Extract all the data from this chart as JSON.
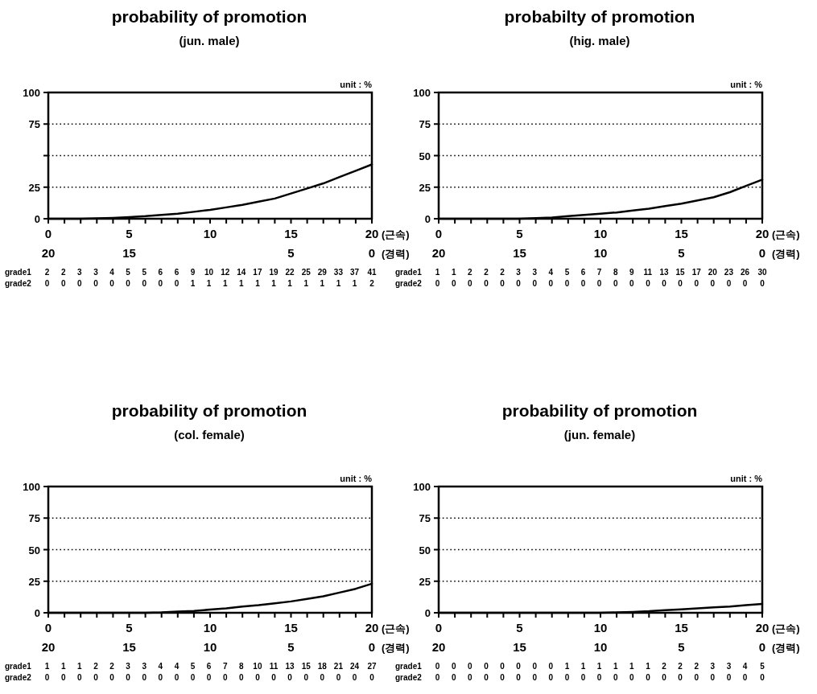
{
  "chart_data": [
    {
      "type": "line",
      "title": "probability of promotion",
      "subtitle": "(jun. male)",
      "xlabel": "(근속)",
      "x2label": "(경력)",
      "x": [
        0,
        1,
        2,
        3,
        4,
        5,
        6,
        7,
        8,
        9,
        10,
        11,
        12,
        13,
        14,
        15,
        16,
        17,
        18,
        19,
        20
      ],
      "xlim": [
        0,
        20
      ],
      "xticks": [
        0,
        {
          "value": 1,
          "label": null
        },
        {
          "value": 2,
          "label": null
        },
        {
          "value": 3,
          "label": null
        },
        {
          "value": 4,
          "label": null
        },
        5,
        {
          "value": 6,
          "label": null
        },
        {
          "value": 7,
          "label": null
        },
        {
          "value": 8,
          "label": null
        },
        {
          "value": 9,
          "label": null
        },
        10,
        {
          "value": 11,
          "label": null
        },
        {
          "value": 12,
          "label": null
        },
        {
          "value": 13,
          "label": null
        },
        {
          "value": 14,
          "label": null
        },
        15,
        {
          "value": 16,
          "label": null
        },
        {
          "value": 17,
          "label": null
        },
        {
          "value": 18,
          "label": null
        },
        {
          "value": 19,
          "label": null
        },
        20
      ],
      "x2lim": [
        20,
        0
      ],
      "x2ticks": [
        20,
        15,
        5,
        0
      ],
      "ylim": [
        0,
        100
      ],
      "yticks": [
        0,
        25,
        {
          "value": 50,
          "label": null
        },
        75,
        100
      ],
      "grid": "y",
      "line_style": "solid",
      "series": [
        {
          "color": "#000000",
          "values": [
            0,
            0,
            0,
            0.3,
            0.7,
            1.3,
            2,
            3,
            4,
            5.5,
            7,
            9,
            11,
            13.5,
            16,
            20,
            24,
            28,
            33,
            38,
            43
          ]
        }
      ],
      "annotations": [
        "unit : %",
        "grade1 2 2 3 3 4 5 5 6 6 9 10 12 14 17 19 22 25 29 33 37 41",
        "grade2 0 0 0 0 0 0 0 0 0 1 1 1 1 1 1 1 1 1 1 1 2"
      ]
    },
    {
      "type": "line",
      "title": "probabilty of promotion",
      "subtitle": "(hig. male)",
      "xlabel": "(근속)",
      "x2label": "(경력)",
      "x": [
        0,
        1,
        2,
        3,
        4,
        5,
        6,
        7,
        8,
        9,
        10,
        11,
        12,
        13,
        14,
        15,
        16,
        17,
        18,
        19,
        20
      ],
      "xlim": [
        0,
        20
      ],
      "xticks": [
        0,
        {
          "value": 1,
          "label": null
        },
        {
          "value": 2,
          "label": null
        },
        {
          "value": 3,
          "label": null
        },
        {
          "value": 4,
          "label": null
        },
        5,
        {
          "value": 6,
          "label": null
        },
        {
          "value": 7,
          "label": null
        },
        {
          "value": 8,
          "label": null
        },
        {
          "value": 9,
          "label": null
        },
        10,
        {
          "value": 11,
          "label": null
        },
        {
          "value": 12,
          "label": null
        },
        {
          "value": 13,
          "label": null
        },
        {
          "value": 14,
          "label": null
        },
        15,
        {
          "value": 16,
          "label": null
        },
        {
          "value": 17,
          "label": null
        },
        {
          "value": 18,
          "label": null
        },
        {
          "value": 19,
          "label": null
        },
        20
      ],
      "x2lim": [
        20,
        0
      ],
      "x2ticks": [
        20,
        15,
        10,
        5,
        0
      ],
      "ylim": [
        0,
        100
      ],
      "yticks": [
        0,
        25,
        50,
        75,
        100
      ],
      "grid": "y",
      "line_style": "solid",
      "series": [
        {
          "color": "#000000",
          "values": [
            0,
            0,
            0,
            0,
            0,
            0,
            0.5,
            1,
            2,
            3,
            4,
            5,
            6.5,
            8,
            10,
            12,
            14.5,
            17,
            21,
            26,
            31
          ]
        }
      ],
      "annotations": [
        "unit : %",
        "grade1 1 1 2 2 2 3 3 4 5 6 7 8 9 11 13 15 17 20 23 26 30",
        "grade2 0 0 0 0 0 0 0 0 0 0 0 0 0 0 0 0 0 0 0 0 0"
      ]
    },
    {
      "type": "line",
      "title": "probability of promotion",
      "subtitle": "(col. female)",
      "xlabel": "(근속)",
      "x2label": "(경력)",
      "x": [
        0,
        1,
        2,
        3,
        4,
        5,
        6,
        7,
        8,
        9,
        10,
        11,
        12,
        13,
        14,
        15,
        16,
        17,
        18,
        19,
        20
      ],
      "xlim": [
        0,
        20
      ],
      "xticks": [
        0,
        {
          "value": 1,
          "label": null
        },
        {
          "value": 2,
          "label": null
        },
        {
          "value": 3,
          "label": null
        },
        {
          "value": 4,
          "label": null
        },
        5,
        {
          "value": 6,
          "label": null
        },
        {
          "value": 7,
          "label": null
        },
        {
          "value": 8,
          "label": null
        },
        {
          "value": 9,
          "label": null
        },
        10,
        {
          "value": 11,
          "label": null
        },
        {
          "value": 12,
          "label": null
        },
        {
          "value": 13,
          "label": null
        },
        {
          "value": 14,
          "label": null
        },
        15,
        {
          "value": 16,
          "label": null
        },
        {
          "value": 17,
          "label": null
        },
        {
          "value": 18,
          "label": null
        },
        {
          "value": 19,
          "label": null
        },
        20
      ],
      "x2lim": [
        20,
        0
      ],
      "x2ticks": [
        20,
        15,
        10,
        5,
        0
      ],
      "ylim": [
        0,
        100
      ],
      "yticks": [
        0,
        25,
        50,
        75,
        100
      ],
      "grid": "y",
      "line_style": "solid",
      "series": [
        {
          "color": "#000000",
          "values": [
            0,
            0,
            0,
            0,
            0,
            0,
            0,
            0.3,
            1,
            1.5,
            2.5,
            3.5,
            5,
            6,
            7.5,
            9,
            11,
            13,
            16,
            19,
            23
          ]
        }
      ],
      "annotations": [
        "unit : %",
        "grade1 1 1 1 2 2 3 3 4 4 5 6 7 8 10 11 13 15 18 21 24 27",
        "grade2 0 0 0 0 0 0 0 0 0 0 0 0 0 0 0 0 0 0 0 0 0"
      ]
    },
    {
      "type": "line",
      "title": "probability of promotion",
      "subtitle": "(jun. female)",
      "xlabel": "(근속)",
      "x2label": "(경력)",
      "x": [
        0,
        1,
        2,
        3,
        4,
        5,
        6,
        7,
        8,
        9,
        10,
        11,
        12,
        13,
        14,
        15,
        16,
        17,
        18,
        19,
        20
      ],
      "xlim": [
        0,
        20
      ],
      "xticks": [
        0,
        {
          "value": 1,
          "label": null
        },
        {
          "value": 2,
          "label": null
        },
        {
          "value": 3,
          "label": null
        },
        {
          "value": 4,
          "label": null
        },
        5,
        {
          "value": 6,
          "label": null
        },
        {
          "value": 7,
          "label": null
        },
        {
          "value": 8,
          "label": null
        },
        {
          "value": 9,
          "label": null
        },
        10,
        {
          "value": 11,
          "label": null
        },
        {
          "value": 12,
          "label": null
        },
        {
          "value": 13,
          "label": null
        },
        {
          "value": 14,
          "label": null
        },
        15,
        {
          "value": 16,
          "label": null
        },
        {
          "value": 17,
          "label": null
        },
        {
          "value": 18,
          "label": null
        },
        {
          "value": 19,
          "label": null
        },
        20
      ],
      "x2lim": [
        20,
        0
      ],
      "x2ticks": [
        20,
        15,
        10,
        5,
        0
      ],
      "ylim": [
        0,
        100
      ],
      "yticks": [
        0,
        25,
        50,
        75,
        100
      ],
      "grid": "y",
      "line_style": "solid",
      "series": [
        {
          "color": "#000000",
          "values": [
            0,
            0,
            0,
            0,
            0,
            0,
            0,
            0,
            0,
            0,
            0,
            0.3,
            0.7,
            1.2,
            2,
            2.7,
            3.5,
            4.3,
            5,
            6,
            7
          ]
        }
      ],
      "annotations": [
        "unit : %",
        "grade1 0 0 0 0 0 0 0 0 1 1 1 1 1 1 2 2 2 3 3 4 5",
        "grade2 0 0 0 0 0 0 0 0 0 0 0 0 0 0 0 0 0 0 0 0 0"
      ]
    }
  ]
}
